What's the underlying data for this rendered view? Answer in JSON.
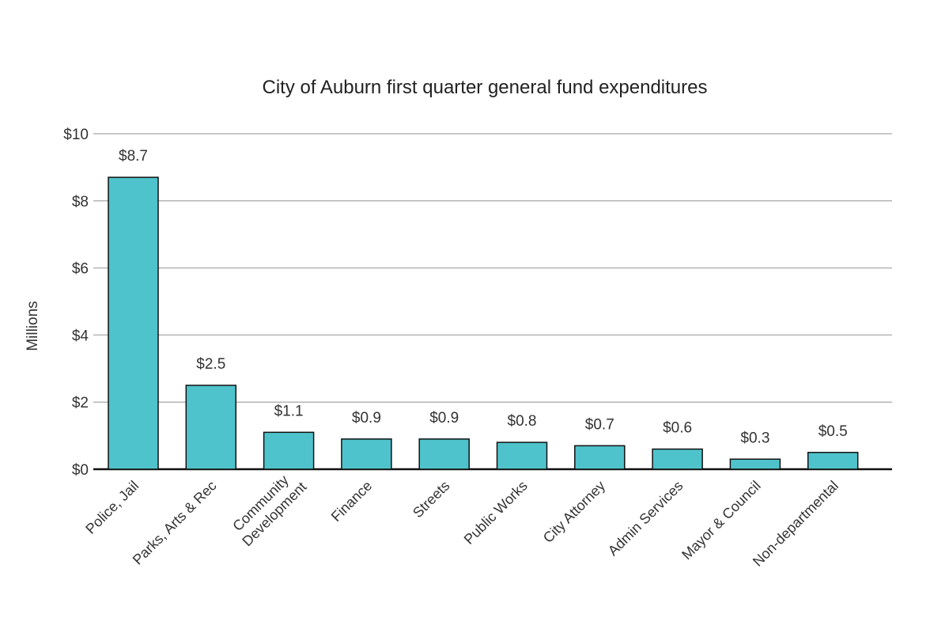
{
  "chart_data": {
    "type": "bar",
    "title": "City of Auburn first quarter general fund expenditures",
    "xlabel": "",
    "ylabel": "Millions",
    "ylim": [
      0,
      10
    ],
    "yticks": [
      0,
      2,
      4,
      6,
      8,
      10
    ],
    "ytick_labels": [
      "$0",
      "$2",
      "$4",
      "$6",
      "$8",
      "$10"
    ],
    "grid": true,
    "categories": [
      "Police, Jail",
      "Parks, Arts & Rec",
      "Community Development",
      "Finance",
      "Streets",
      "Public Works",
      "City Attorney",
      "Admin Services",
      "Mayor & Council",
      "Non-departmental"
    ],
    "values": [
      8.7,
      2.5,
      1.1,
      0.9,
      0.9,
      0.8,
      0.7,
      0.6,
      0.3,
      0.5
    ],
    "data_labels": [
      "$8.7",
      "$2.5",
      "$1.1",
      "$0.9",
      "$0.9",
      "$0.8",
      "$0.7",
      "$0.6",
      "$0.3",
      "$0.5"
    ],
    "bar_color": "#4fc3cb",
    "bar_edge_color": "#111111",
    "grid_color": "#b5b5b5"
  }
}
